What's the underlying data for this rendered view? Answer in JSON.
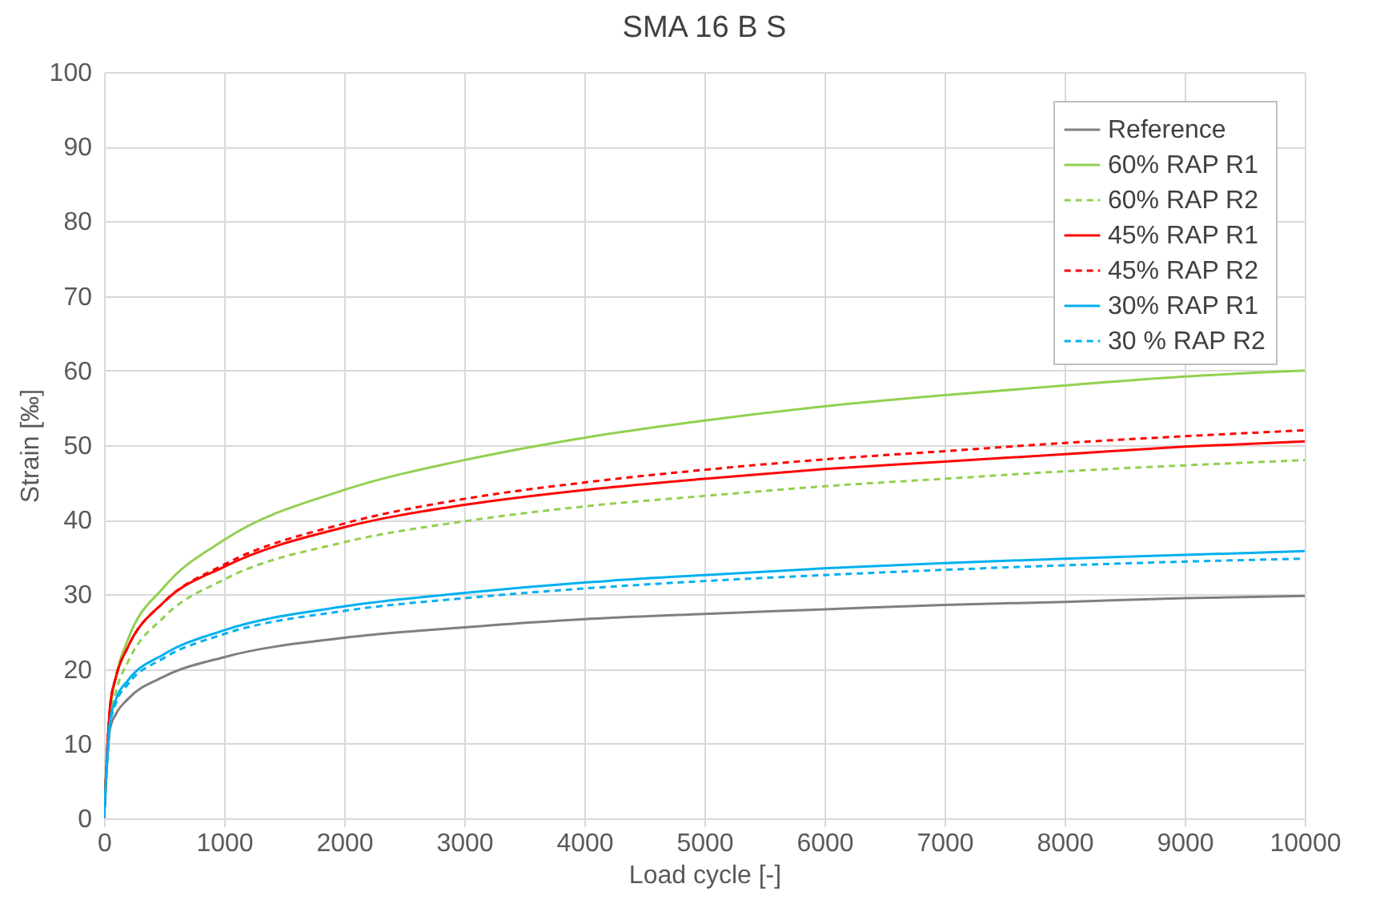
{
  "chart_data": {
    "type": "line",
    "title": "SMA 16 B S",
    "xlabel": "Load cycle [-]",
    "ylabel": "Strain [‰]",
    "x": [
      0,
      50,
      100,
      200,
      500,
      1000,
      2000,
      3000,
      4000,
      5000,
      6000,
      7000,
      8000,
      9000,
      10000
    ],
    "series": [
      {
        "name": "Reference",
        "color": "#7f7f7f",
        "line_style": "solid",
        "values": [
          0,
          12,
          14,
          16,
          19,
          21.6,
          24.2,
          25.6,
          26.7,
          27.4,
          28,
          28.6,
          29,
          29.5,
          29.8
        ]
      },
      {
        "name": "60% RAP R1",
        "color": "#92d050",
        "line_style": "solid",
        "values": [
          0,
          14,
          19,
          24,
          31,
          37.3,
          44,
          48,
          51,
          53.3,
          55.2,
          56.7,
          58,
          59.2,
          60
        ]
      },
      {
        "name": "60% RAP R2",
        "color": "#92d050",
        "line_style": "dashed",
        "values": [
          0,
          13,
          17,
          21,
          27,
          32,
          37,
          39.8,
          41.8,
          43.2,
          44.5,
          45.5,
          46.5,
          47.3,
          48
        ]
      },
      {
        "name": "45% RAP R1",
        "color": "#ff0000",
        "line_style": "solid",
        "values": [
          0,
          15,
          19,
          23,
          29,
          33.7,
          39,
          42,
          44,
          45.5,
          46.8,
          47.8,
          48.8,
          49.8,
          50.5
        ]
      },
      {
        "name": "45% RAP R2",
        "color": "#ff0000",
        "line_style": "dashed",
        "values": [
          0,
          15,
          19,
          23,
          29,
          34,
          39.5,
          42.8,
          45,
          46.7,
          48.1,
          49.2,
          50.3,
          51.2,
          52
        ]
      },
      {
        "name": "30% RAP R1",
        "color": "#00b0f0",
        "line_style": "solid",
        "values": [
          0,
          13,
          16,
          18.5,
          22,
          25.2,
          28.4,
          30.2,
          31.6,
          32.6,
          33.5,
          34.2,
          34.8,
          35.3,
          35.8
        ]
      },
      {
        "name": "30 % RAP R2",
        "color": "#00b0f0",
        "line_style": "dashed",
        "values": [
          0,
          12.5,
          15.5,
          18,
          21.5,
          24.7,
          27.8,
          29.5,
          30.8,
          31.8,
          32.6,
          33.3,
          33.9,
          34.4,
          34.8
        ]
      }
    ],
    "xlim": [
      0,
      10000
    ],
    "xticks": [
      0,
      1000,
      2000,
      3000,
      4000,
      5000,
      6000,
      7000,
      8000,
      9000,
      10000
    ],
    "ylim": [
      0,
      100
    ],
    "yticks": [
      0,
      10,
      20,
      30,
      40,
      50,
      60,
      70,
      80,
      90,
      100
    ],
    "grid": true,
    "legend": "top right"
  }
}
